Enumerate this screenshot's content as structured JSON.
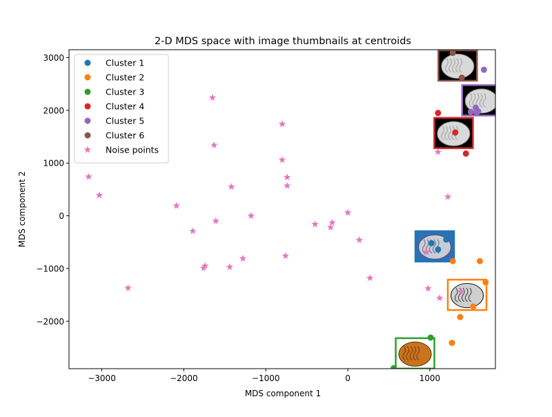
{
  "chart_data": {
    "type": "scatter",
    "title": "2-D MDS space with image thumbnails at centroids",
    "xlabel": "MDS component 1",
    "ylabel": "MDS component 2",
    "xlim": [
      -3400,
      1800
    ],
    "ylim": [
      -2900,
      3150
    ],
    "xticks": [
      -3000,
      -2000,
      -1000,
      0,
      1000
    ],
    "yticks": [
      -2000,
      -1000,
      0,
      1000,
      2000,
      3000
    ],
    "legend_position": "upper-left",
    "series": [
      {
        "name": "Cluster 1",
        "color": "#1f77b4",
        "marker": "circle",
        "points": [
          [
            1020,
            -520
          ],
          [
            1100,
            -640
          ],
          [
            1200,
            -450
          ]
        ]
      },
      {
        "name": "Cluster 2",
        "color": "#ff7f0e",
        "marker": "circle",
        "points": [
          [
            1280,
            -860
          ],
          [
            1610,
            -860
          ],
          [
            1680,
            -1260
          ],
          [
            1530,
            -1720
          ],
          [
            1370,
            -1920
          ],
          [
            1270,
            -2410
          ]
        ]
      },
      {
        "name": "Cluster 3",
        "color": "#2ca02c",
        "marker": "circle",
        "points": [
          [
            1010,
            -2310
          ],
          [
            560,
            -2890
          ]
        ]
      },
      {
        "name": "Cluster 4",
        "color": "#d62728",
        "marker": "circle",
        "points": [
          [
            1100,
            1950
          ],
          [
            1440,
            1180
          ],
          [
            1310,
            1580
          ]
        ]
      },
      {
        "name": "Cluster 5",
        "color": "#9467bd",
        "marker": "circle",
        "points": [
          [
            1660,
            2770
          ],
          [
            1500,
            1970
          ],
          [
            1570,
            1960
          ],
          [
            1560,
            2050
          ],
          [
            1590,
            1980
          ]
        ]
      },
      {
        "name": "Cluster 6",
        "color": "#8c564b",
        "marker": "circle",
        "points": [
          [
            1280,
            3090
          ],
          [
            1390,
            2620
          ]
        ]
      },
      {
        "name": "Noise points",
        "color": "#e377c2",
        "marker": "star",
        "points": [
          [
            -1650,
            2240
          ],
          [
            -800,
            1740
          ],
          [
            -1630,
            1340
          ],
          [
            -800,
            1060
          ],
          [
            -740,
            730
          ],
          [
            -740,
            570
          ],
          [
            -1420,
            550
          ],
          [
            -3160,
            740
          ],
          [
            -3030,
            390
          ],
          [
            -2090,
            190
          ],
          [
            -1610,
            -100
          ],
          [
            -1890,
            -290
          ],
          [
            -1180,
            0
          ],
          [
            -400,
            -160
          ],
          [
            -190,
            -130
          ],
          [
            -210,
            -220
          ],
          [
            0,
            60
          ],
          [
            140,
            -460
          ],
          [
            270,
            -1180
          ],
          [
            -760,
            -760
          ],
          [
            -1280,
            -810
          ],
          [
            -1440,
            -970
          ],
          [
            -1740,
            -950
          ],
          [
            -1760,
            -990
          ],
          [
            -2680,
            -1370
          ],
          [
            1220,
            360
          ],
          [
            1100,
            1210
          ],
          [
            960,
            -690
          ],
          [
            980,
            -1380
          ],
          [
            1120,
            -1560
          ],
          [
            1380,
            -1440
          ]
        ]
      }
    ],
    "thumbnails": [
      {
        "cluster": "Cluster 1",
        "center": [
          1060,
          -580
        ],
        "border": "#1f77b4",
        "fill": "#2f6fb6",
        "style": "brain-color"
      },
      {
        "cluster": "Cluster 2",
        "center": [
          1455,
          -1500
        ],
        "border": "#ff7f0e",
        "fill": "#ffffff",
        "style": "brain-dark"
      },
      {
        "cluster": "Cluster 3",
        "center": [
          820,
          -2610
        ],
        "border": "#2ca02c",
        "fill": "#ffffff",
        "style": "brain-orange"
      },
      {
        "cluster": "Cluster 4",
        "center": [
          1290,
          1570
        ],
        "border": "#d62728",
        "fill": "#000000",
        "style": "brain-gray"
      },
      {
        "cluster": "Cluster 5",
        "center": [
          1630,
          2190
        ],
        "border": "#9467bd",
        "fill": "#000000",
        "style": "brain-gray"
      },
      {
        "cluster": "Cluster 6",
        "center": [
          1340,
          2850
        ],
        "border": "#8c564b",
        "fill": "#000000",
        "style": "brain-gray"
      }
    ]
  }
}
